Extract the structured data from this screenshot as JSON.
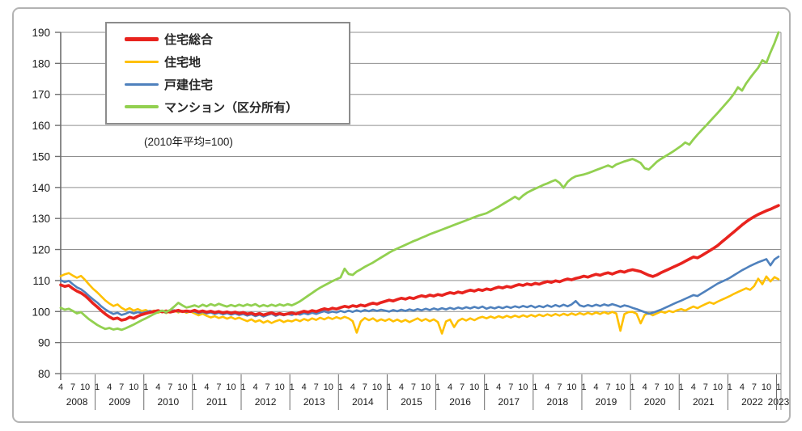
{
  "chart_data": {
    "type": "line",
    "title": "",
    "note": "(2010年平均=100)",
    "frequency": "monthly",
    "x_start": "2008-04",
    "x_end": "2023-01",
    "ylim": [
      80,
      190
    ],
    "yticks": [
      80,
      90,
      100,
      110,
      120,
      130,
      140,
      150,
      160,
      170,
      180,
      190
    ],
    "grid": true,
    "legend_position": "top-left",
    "x_axis": {
      "years": [
        {
          "label": "2008",
          "months": [
            4,
            7,
            10
          ]
        },
        {
          "label": "2009",
          "months": [
            1,
            4,
            7,
            10
          ]
        },
        {
          "label": "2010",
          "months": [
            1,
            4,
            7,
            10
          ]
        },
        {
          "label": "2011",
          "months": [
            1,
            4,
            7,
            10
          ]
        },
        {
          "label": "2012",
          "months": [
            1,
            4,
            7,
            10
          ]
        },
        {
          "label": "2013",
          "months": [
            1,
            4,
            7,
            10
          ]
        },
        {
          "label": "2014",
          "months": [
            1,
            4,
            7,
            10
          ]
        },
        {
          "label": "2015",
          "months": [
            1,
            4,
            7,
            10
          ]
        },
        {
          "label": "2016",
          "months": [
            1,
            4,
            7,
            10
          ]
        },
        {
          "label": "2017",
          "months": [
            1,
            4,
            7,
            10
          ]
        },
        {
          "label": "2018",
          "months": [
            1,
            4,
            7,
            10
          ]
        },
        {
          "label": "2019",
          "months": [
            1,
            4,
            7,
            10
          ]
        },
        {
          "label": "2020",
          "months": [
            1,
            4,
            7,
            10
          ]
        },
        {
          "label": "2021",
          "months": [
            1,
            4,
            7,
            10
          ]
        },
        {
          "label": "2022",
          "months": [
            1,
            4,
            7,
            10
          ]
        },
        {
          "label": "2023",
          "months": [
            1
          ]
        }
      ]
    },
    "series": [
      {
        "name": "住宅総合",
        "color": "#e8231e",
        "line_width": 3.6,
        "values": [
          108.6,
          108.1,
          108.4,
          107.4,
          106.6,
          106.0,
          105.1,
          103.9,
          102.6,
          101.5,
          100.3,
          99.2,
          98.3,
          97.6,
          97.9,
          97.2,
          97.5,
          98.2,
          97.8,
          98.5,
          99.0,
          99.4,
          99.7,
          100.0,
          100.3,
          99.9,
          100.2,
          99.8,
          100.1,
          100.4,
          100.0,
          100.2,
          100.0,
          100.4,
          99.9,
          100.2,
          99.8,
          100.1,
          99.7,
          100.0,
          99.6,
          99.9,
          99.5,
          99.8,
          99.4,
          99.7,
          99.2,
          99.5,
          99.0,
          99.4,
          98.9,
          99.3,
          99.6,
          99.1,
          99.4,
          99.0,
          99.3,
          99.6,
          99.2,
          99.7,
          100.1,
          99.8,
          100.3,
          100.0,
          100.5,
          100.9,
          100.6,
          101.1,
          100.8,
          101.3,
          101.7,
          101.4,
          101.9,
          101.6,
          102.1,
          101.8,
          102.3,
          102.7,
          102.4,
          102.9,
          103.3,
          103.7,
          103.4,
          103.9,
          104.3,
          104.0,
          104.5,
          104.2,
          104.7,
          105.1,
          104.8,
          105.3,
          105.0,
          105.5,
          105.2,
          105.7,
          106.1,
          105.8,
          106.3,
          106.0,
          106.5,
          106.9,
          106.6,
          107.1,
          106.8,
          107.3,
          107.0,
          107.5,
          107.9,
          107.6,
          108.1,
          107.8,
          108.3,
          108.7,
          108.4,
          108.9,
          108.6,
          109.1,
          108.8,
          109.3,
          109.7,
          109.4,
          109.9,
          109.6,
          110.1,
          110.5,
          110.2,
          110.7,
          111.0,
          111.4,
          111.1,
          111.6,
          112.0,
          111.7,
          112.2,
          112.5,
          112.1,
          112.6,
          113.0,
          112.7,
          113.2,
          113.5,
          113.2,
          112.9,
          112.3,
          111.7,
          111.3,
          111.8,
          112.5,
          113.1,
          113.7,
          114.3,
          114.9,
          115.5,
          116.2,
          116.9,
          117.6,
          117.3,
          118.0,
          118.8,
          119.6,
          120.4,
          121.3,
          122.4,
          123.5,
          124.6,
          125.7,
          126.8,
          127.9,
          128.9,
          129.8,
          130.6,
          131.3,
          131.9,
          132.5,
          133.0,
          133.6,
          134.2
        ]
      },
      {
        "name": "住宅地",
        "color": "#ffc000",
        "line_width": 2.6,
        "values": [
          111.4,
          112.0,
          112.4,
          111.6,
          110.9,
          111.5,
          110.2,
          108.7,
          107.3,
          106.2,
          104.9,
          103.6,
          102.6,
          101.8,
          102.3,
          101.2,
          100.5,
          101.1,
          100.3,
          100.8,
          100.2,
          100.5,
          99.8,
          100.3,
          99.6,
          100.1,
          99.5,
          100.0,
          100.4,
          99.7,
          100.2,
          99.6,
          100.0,
          99.4,
          98.8,
          99.3,
          98.6,
          98.1,
          98.5,
          97.9,
          98.3,
          97.7,
          98.2,
          97.6,
          98.0,
          97.4,
          96.9,
          97.5,
          96.7,
          97.2,
          96.4,
          97.0,
          96.3,
          96.9,
          97.3,
          96.6,
          97.1,
          96.8,
          97.4,
          96.9,
          97.6,
          97.1,
          97.8,
          97.3,
          98.0,
          97.5,
          98.1,
          97.6,
          98.2,
          97.7,
          98.3,
          97.8,
          96.9,
          93.2,
          96.8,
          97.9,
          97.2,
          97.8,
          96.9,
          97.5,
          97.0,
          97.6,
          96.8,
          97.4,
          96.7,
          97.3,
          96.6,
          97.2,
          97.8,
          97.0,
          97.6,
          96.9,
          97.5,
          96.6,
          92.9,
          96.8,
          97.4,
          95.0,
          97.0,
          97.7,
          97.1,
          97.8,
          97.2,
          97.9,
          98.3,
          97.8,
          98.4,
          97.9,
          98.5,
          98.0,
          98.6,
          98.1,
          98.7,
          98.2,
          98.8,
          98.3,
          98.9,
          98.4,
          99.0,
          98.5,
          99.1,
          98.6,
          99.2,
          98.7,
          99.3,
          98.8,
          99.4,
          98.9,
          99.5,
          99.0,
          99.6,
          99.1,
          99.7,
          99.2,
          99.8,
          99.3,
          99.9,
          99.4,
          93.8,
          99.2,
          99.8,
          99.9,
          99.3,
          96.2,
          98.9,
          99.5,
          98.8,
          99.4,
          100.0,
          99.6,
          100.2,
          99.8,
          100.4,
          100.8,
          100.3,
          101.0,
          101.6,
          101.1,
          101.8,
          102.4,
          103.0,
          102.5,
          103.2,
          103.8,
          104.4,
          105.0,
          105.7,
          106.3,
          106.9,
          107.5,
          107.0,
          108.2,
          110.6,
          108.8,
          111.3,
          109.7,
          111.1,
          110.4
        ]
      },
      {
        "name": "戸建住宅",
        "color": "#4f81bd",
        "line_width": 2.6,
        "values": [
          110.1,
          109.5,
          109.9,
          108.8,
          107.8,
          107.2,
          106.2,
          105.0,
          103.9,
          102.9,
          101.7,
          100.7,
          99.9,
          99.2,
          99.6,
          98.9,
          99.3,
          99.9,
          99.4,
          99.8,
          99.5,
          99.8,
          100.2,
          99.9,
          100.3,
          100.0,
          99.7,
          100.1,
          100.4,
          100.0,
          100.2,
          99.9,
          100.1,
          100.0,
          99.5,
          99.9,
          99.4,
          99.7,
          99.2,
          99.6,
          99.1,
          99.5,
          99.0,
          99.4,
          98.9,
          99.2,
          98.7,
          99.1,
          98.5,
          99.0,
          98.4,
          98.9,
          99.3,
          98.6,
          99.1,
          98.8,
          99.2,
          98.9,
          99.4,
          99.0,
          99.5,
          99.1,
          99.6,
          99.2,
          99.7,
          100.1,
          99.6,
          100.0,
          99.7,
          100.2,
          99.8,
          100.3,
          99.9,
          100.4,
          100.0,
          100.5,
          100.1,
          100.6,
          100.2,
          100.6,
          100.3,
          100.0,
          100.5,
          100.1,
          100.6,
          100.2,
          100.7,
          100.3,
          100.8,
          100.4,
          100.9,
          100.5,
          101.0,
          100.6,
          101.1,
          100.7,
          101.2,
          100.8,
          101.3,
          100.9,
          101.4,
          101.0,
          101.5,
          101.1,
          101.6,
          100.9,
          101.4,
          101.0,
          101.5,
          101.1,
          101.6,
          101.2,
          101.7,
          101.3,
          101.8,
          101.4,
          101.9,
          101.3,
          101.8,
          101.4,
          102.0,
          101.5,
          102.1,
          101.6,
          102.2,
          101.7,
          102.3,
          103.4,
          102.0,
          101.6,
          102.1,
          101.7,
          102.2,
          101.8,
          102.3,
          101.9,
          102.4,
          102.0,
          101.5,
          102.0,
          101.7,
          101.2,
          100.8,
          100.3,
          99.8,
          99.3,
          99.6,
          100.1,
          100.6,
          101.2,
          101.8,
          102.4,
          103.0,
          103.5,
          104.1,
          104.7,
          105.3,
          105.0,
          105.8,
          106.6,
          107.4,
          108.2,
          109.0,
          109.6,
          110.2,
          110.9,
          111.7,
          112.5,
          113.3,
          114.0,
          114.7,
          115.3,
          115.9,
          116.4,
          116.9,
          114.9,
          116.8,
          117.7
        ]
      },
      {
        "name": "マンション（区分所有）",
        "color": "#92d050",
        "line_width": 2.8,
        "values": [
          101.2,
          100.6,
          100.9,
          100.2,
          99.4,
          99.8,
          98.6,
          97.5,
          96.6,
          95.7,
          95.0,
          94.4,
          94.7,
          94.2,
          94.5,
          94.1,
          94.6,
          95.2,
          95.8,
          96.5,
          97.2,
          97.8,
          98.5,
          99.2,
          99.8,
          100.3,
          99.9,
          100.5,
          101.6,
          102.8,
          102.0,
          101.3,
          101.6,
          102.0,
          101.5,
          102.2,
          101.7,
          102.4,
          101.9,
          102.5,
          102.0,
          101.6,
          102.1,
          101.7,
          102.2,
          101.8,
          102.3,
          101.9,
          102.4,
          101.6,
          102.1,
          101.7,
          102.2,
          101.8,
          102.3,
          101.9,
          102.4,
          102.0,
          102.6,
          103.3,
          104.2,
          105.1,
          106.0,
          106.9,
          107.7,
          108.4,
          109.1,
          109.8,
          110.4,
          111.0,
          113.8,
          112.1,
          111.8,
          112.9,
          113.6,
          114.4,
          115.1,
          115.8,
          116.6,
          117.4,
          118.2,
          119.0,
          119.7,
          120.3,
          120.9,
          121.5,
          122.1,
          122.7,
          123.2,
          123.8,
          124.3,
          124.9,
          125.4,
          125.9,
          126.4,
          126.9,
          127.4,
          127.9,
          128.4,
          128.9,
          129.4,
          129.9,
          130.4,
          130.9,
          131.3,
          131.7,
          132.4,
          133.1,
          133.8,
          134.6,
          135.4,
          136.2,
          137.0,
          136.2,
          137.4,
          138.3,
          139.0,
          139.6,
          140.2,
          140.8,
          141.3,
          141.9,
          142.4,
          141.5,
          139.9,
          141.8,
          142.9,
          143.6,
          143.9,
          144.2,
          144.6,
          145.1,
          145.6,
          146.1,
          146.6,
          147.1,
          146.5,
          147.4,
          147.9,
          148.4,
          148.8,
          149.2,
          148.6,
          147.9,
          146.2,
          145.8,
          147.0,
          148.3,
          149.2,
          150.0,
          150.8,
          151.6,
          152.5,
          153.4,
          154.5,
          153.8,
          155.5,
          157.0,
          158.4,
          159.8,
          161.2,
          162.6,
          164.0,
          165.5,
          167.0,
          168.5,
          170.2,
          172.3,
          171.2,
          173.5,
          175.3,
          177.0,
          178.6,
          181.0,
          180.2,
          183.5,
          186.5,
          190.0
        ]
      }
    ]
  }
}
